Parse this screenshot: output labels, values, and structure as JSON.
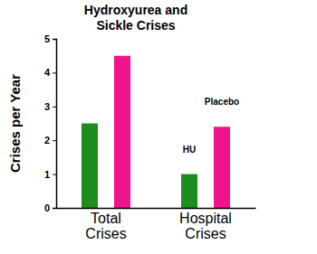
{
  "chart_data": {
    "type": "bar",
    "title": "Hydroxyurea and\nSickle Crises",
    "y_label": "Crises per Year",
    "categories": [
      "Total\nCrises",
      "Hospital\nCrises"
    ],
    "series": [
      {
        "name": "HU",
        "color": "#1e8c1e",
        "values": [
          2.5,
          1.0
        ]
      },
      {
        "name": "Placebo",
        "color": "#f0148c",
        "values": [
          4.5,
          2.4
        ]
      }
    ],
    "ylim": [
      0,
      5
    ],
    "yticks": [
      0,
      1,
      2,
      3,
      4,
      5
    ],
    "grid": false
  }
}
